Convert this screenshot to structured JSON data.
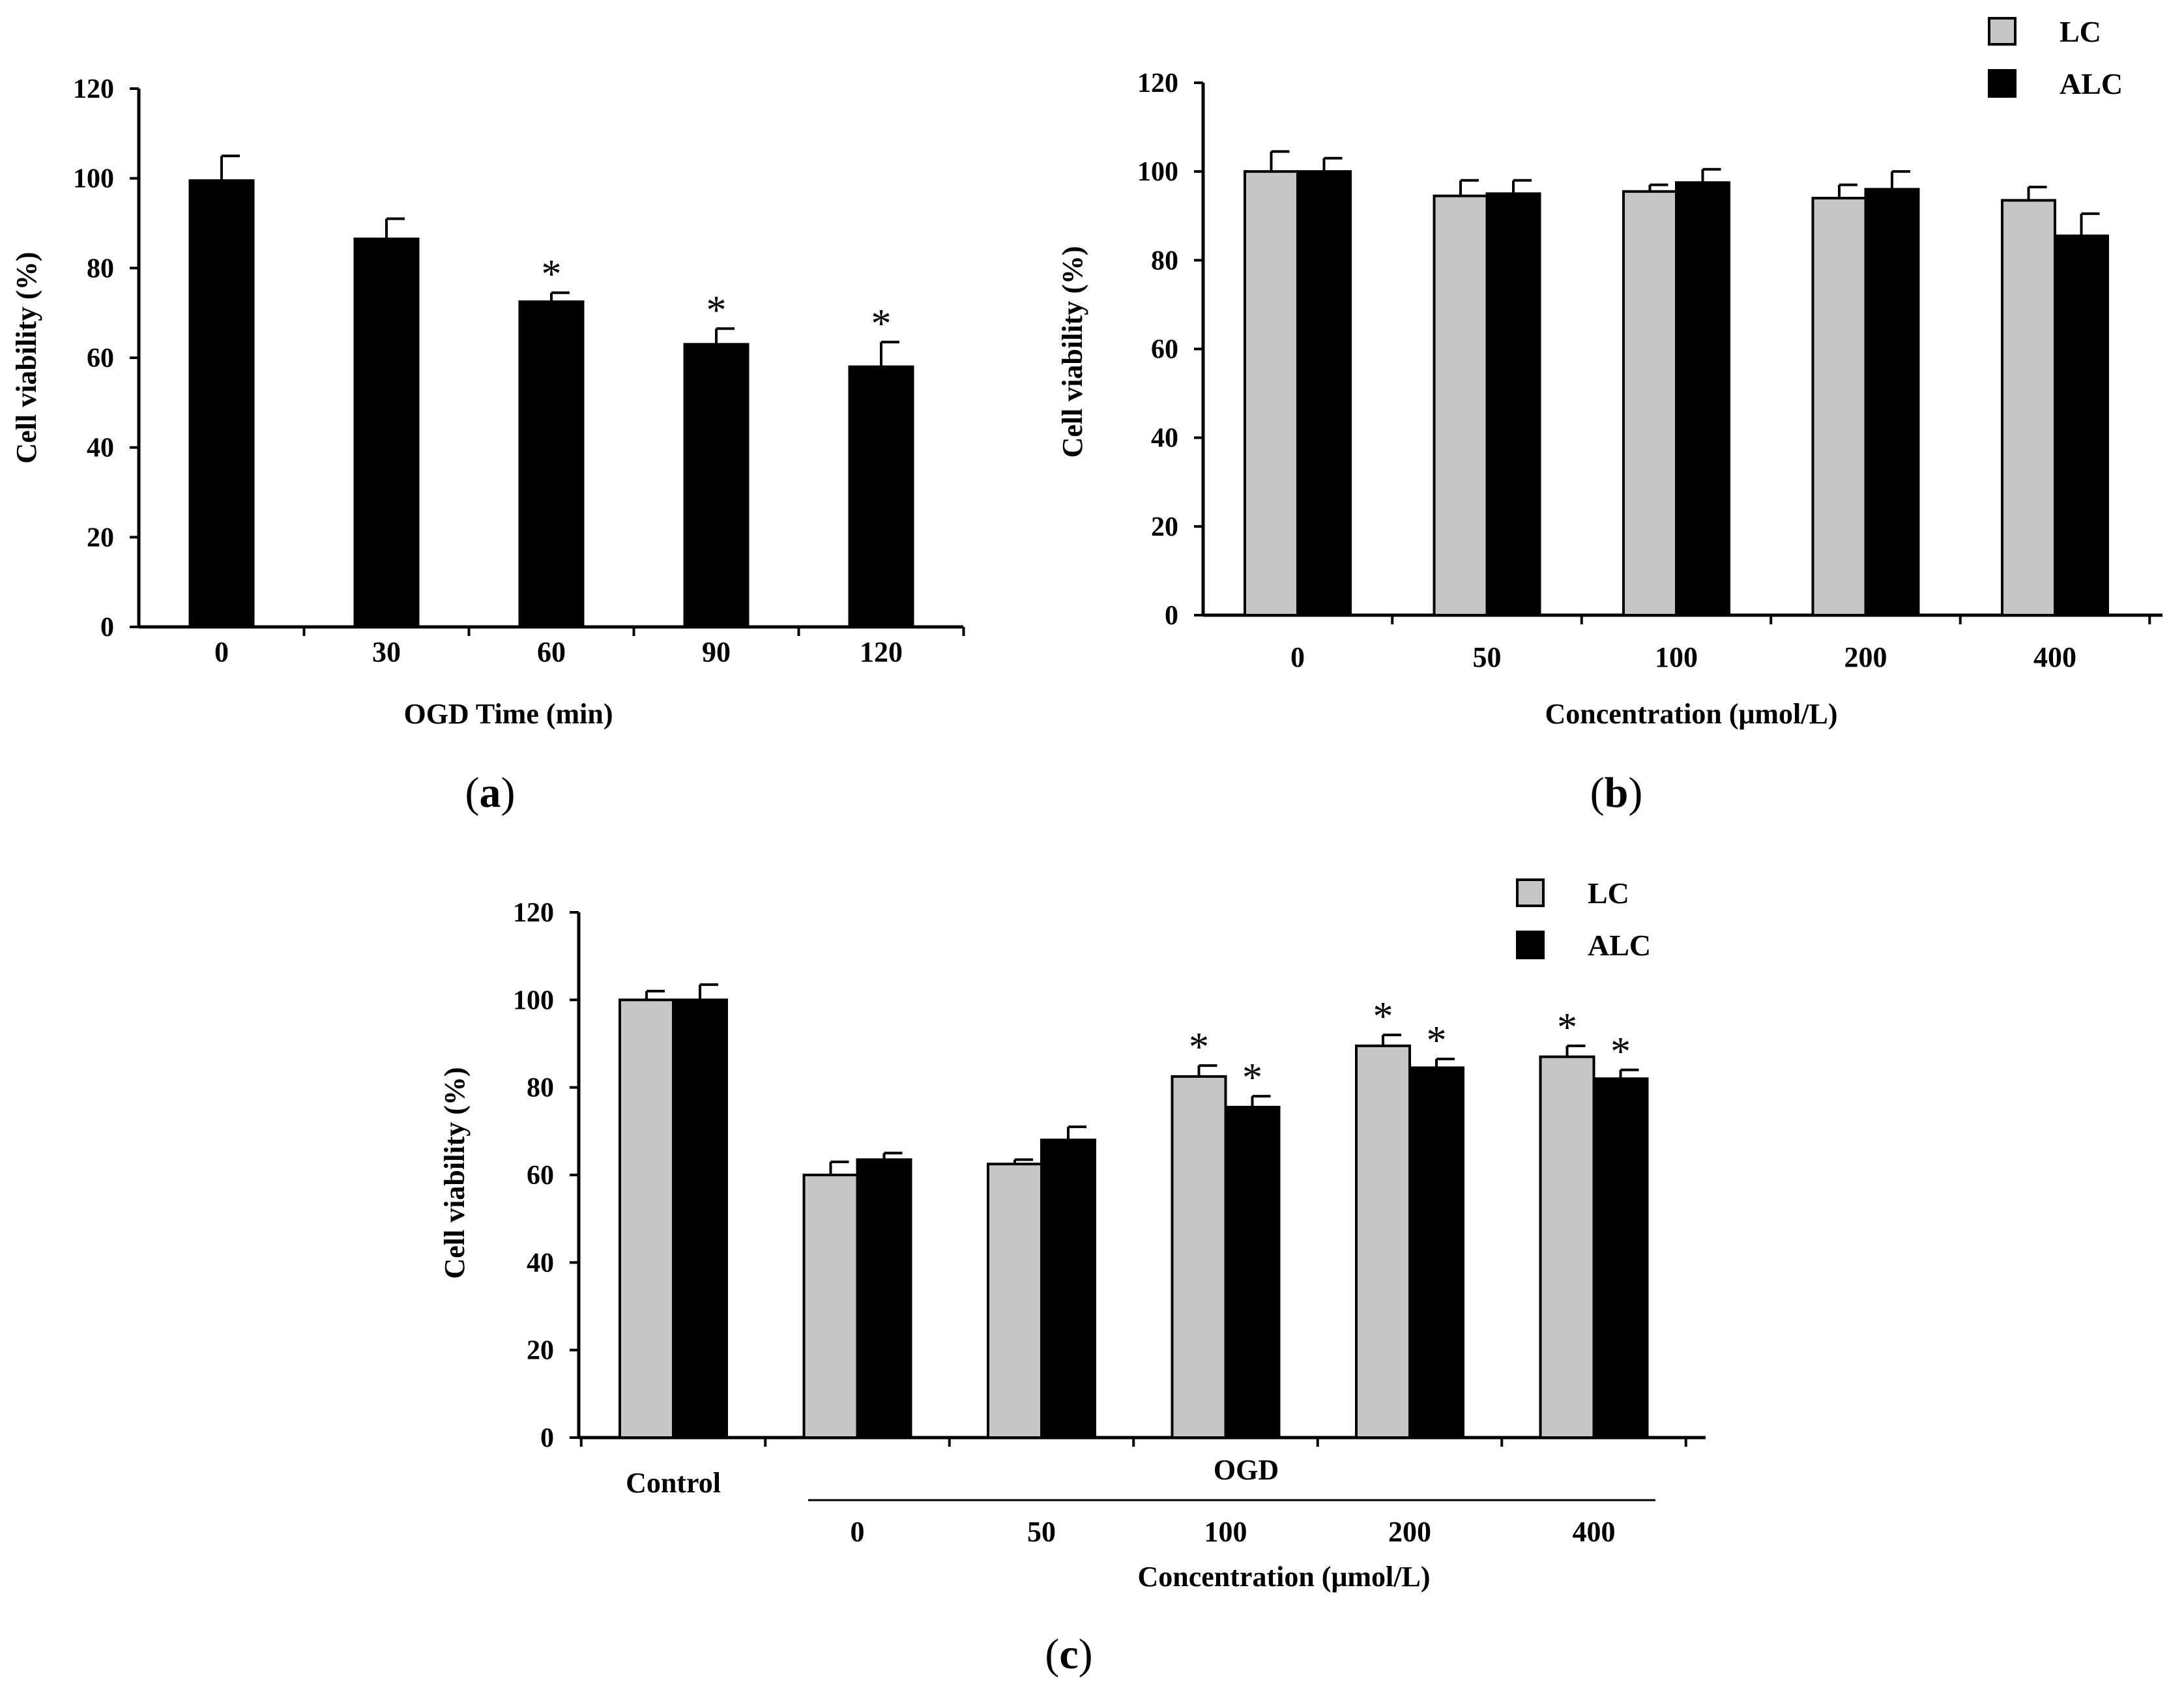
{
  "colors": {
    "LC": "#c6c6c6",
    "ALC": "#000000",
    "single": "#000000"
  },
  "chart_data": [
    {
      "panel": "a",
      "panel_label": "a",
      "type": "bar",
      "xlabel": "OGD Time (min)",
      "ylabel": "Cell viability (%)",
      "ylim": [
        0,
        120
      ],
      "yticks": [
        "0",
        "20",
        "40",
        "60",
        "80",
        "100",
        "120"
      ],
      "categories": [
        "0",
        "30",
        "60",
        "90",
        "120"
      ],
      "series": [
        {
          "name": "single",
          "values": [
            99.5,
            86.5,
            72.5,
            63,
            58
          ],
          "errors": [
            5.5,
            4.5,
            2,
            3.5,
            5.5
          ],
          "sig": [
            false,
            false,
            true,
            true,
            true
          ]
        }
      ],
      "legend": null
    },
    {
      "panel": "b",
      "panel_label": "b",
      "type": "bar",
      "xlabel": "Concentration (μmol/L)",
      "ylabel": "Cell  viability (%)",
      "ylim": [
        0,
        120
      ],
      "yticks": [
        "0",
        "20",
        "40",
        "60",
        "80",
        "100",
        "120"
      ],
      "categories": [
        "0",
        "50",
        "100",
        "200",
        "400"
      ],
      "series": [
        {
          "name": "LC",
          "values": [
            100,
            94.5,
            95.5,
            94,
            93.5
          ],
          "errors": [
            4.5,
            3.5,
            1.5,
            3,
            3
          ],
          "sig": [
            false,
            false,
            false,
            false,
            false
          ]
        },
        {
          "name": "ALC",
          "values": [
            100,
            95,
            97.5,
            96,
            85.5
          ],
          "errors": [
            3,
            3,
            3,
            4,
            5
          ],
          "sig": [
            false,
            false,
            false,
            false,
            false
          ]
        }
      ],
      "legend": [
        "LC",
        "ALC"
      ]
    },
    {
      "panel": "c",
      "panel_label": "c",
      "type": "bar",
      "xlabel": "Concentration (μmol/L)",
      "ylabel": "Cell  viability (%)",
      "ylim": [
        0,
        120
      ],
      "yticks": [
        "0",
        "20",
        "40",
        "60",
        "80",
        "100",
        "120"
      ],
      "categories": [
        "Control",
        "0",
        "50",
        "100",
        "200",
        "400"
      ],
      "group_label": "OGD",
      "series": [
        {
          "name": "LC",
          "values": [
            100,
            60,
            62.5,
            82.5,
            89.5,
            87
          ],
          "errors": [
            2,
            3,
            1,
            2.5,
            2.5,
            2.5
          ],
          "sig": [
            false,
            false,
            false,
            true,
            true,
            true
          ]
        },
        {
          "name": "ALC",
          "values": [
            100,
            63.5,
            68,
            75.5,
            84.5,
            82
          ],
          "errors": [
            3.5,
            1.5,
            3,
            2.5,
            2,
            2
          ],
          "sig": [
            false,
            false,
            false,
            true,
            true,
            true
          ]
        }
      ],
      "legend": [
        "LC",
        "ALC"
      ]
    }
  ]
}
